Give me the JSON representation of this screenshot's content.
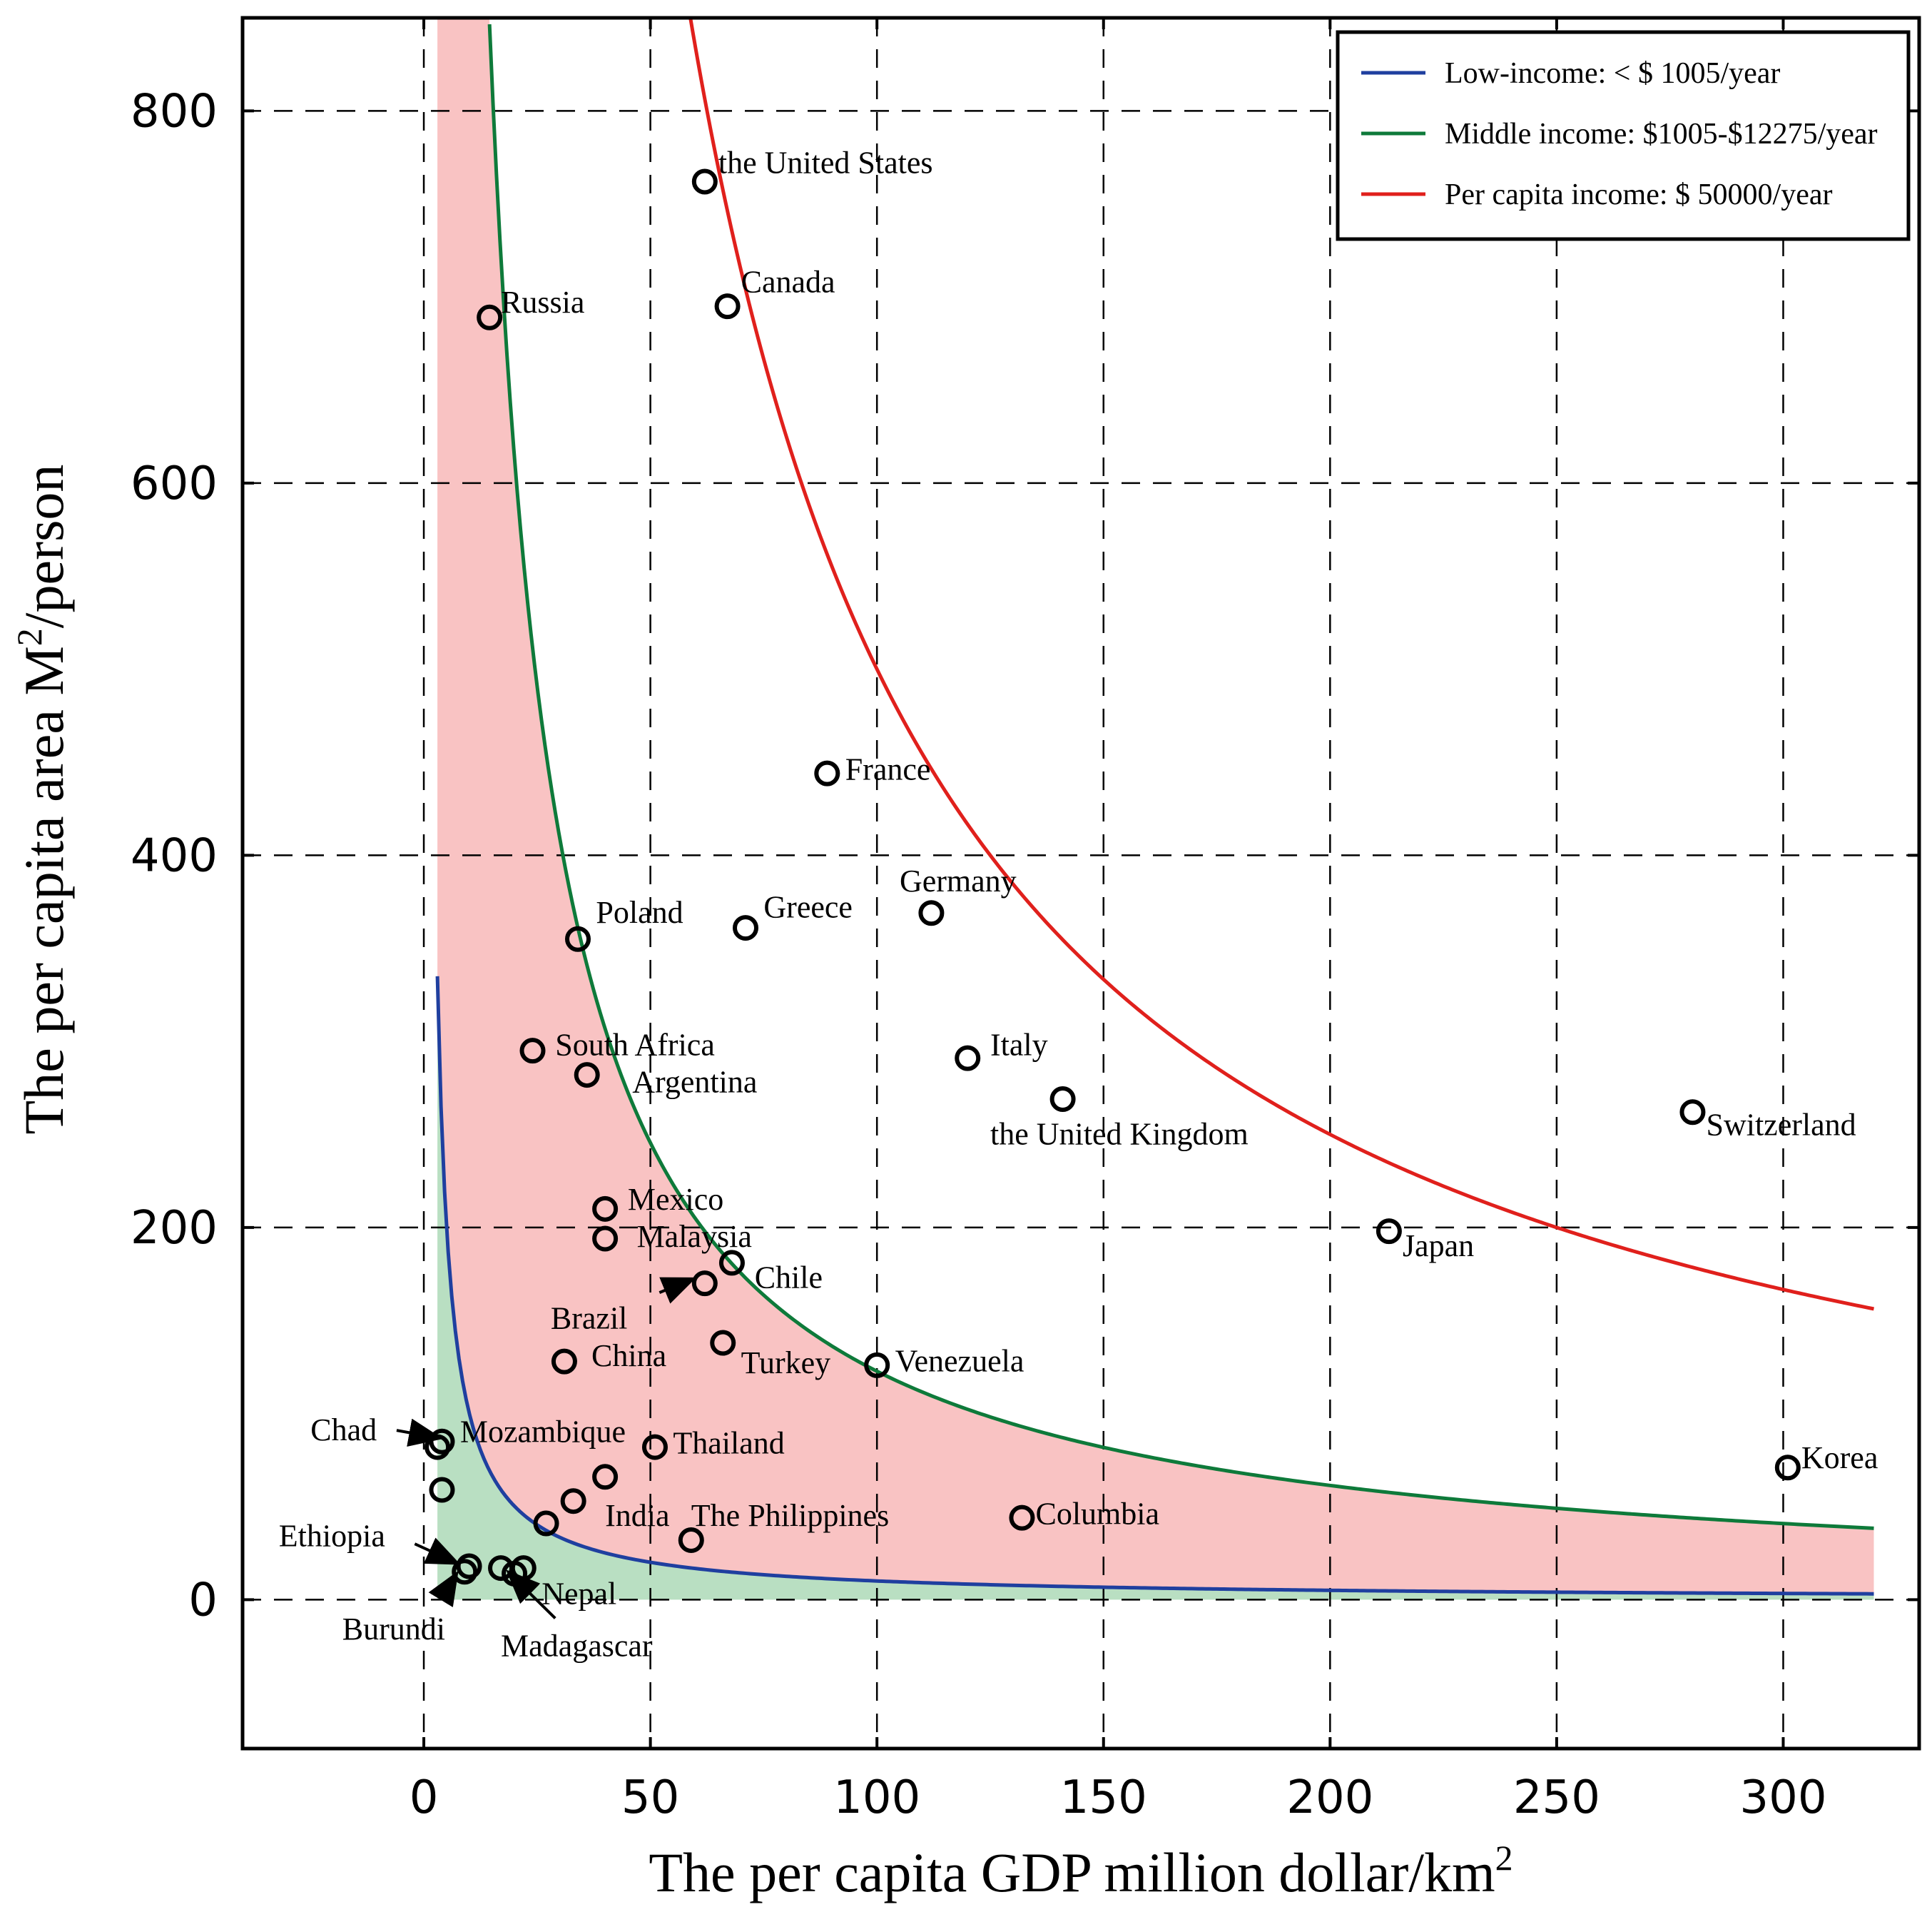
{
  "chart_data": {
    "type": "scatter",
    "xlabel_main": "The per capita GDP million dollar/km",
    "xlabel_sup": "2",
    "ylabel_pre": "The per capita area M",
    "ylabel_sup": "2",
    "ylabel_post": "/person",
    "xlim": [
      -40,
      330
    ],
    "ylim": [
      -80,
      850
    ],
    "xticks": [
      0,
      50,
      100,
      150,
      200,
      250,
      300
    ],
    "yticks": [
      0,
      200,
      400,
      600,
      800
    ],
    "grid": true,
    "legend": {
      "position": "top-right",
      "entries": [
        {
          "label": "Low-income: < $ 1005/year",
          "color": "#1f3f9f"
        },
        {
          "label": "Middle income:  $1005-$12275/year",
          "color": "#0e7a3a"
        },
        {
          "label": "Per capita income: $ 50000/year",
          "color": "#e0201c"
        }
      ]
    },
    "curves": [
      {
        "name": "low-income",
        "k": 1005,
        "x_start": 3,
        "x_end": 320,
        "color": "#1f3f9f"
      },
      {
        "name": "middle-income",
        "k": 12275,
        "x_start": 14.5,
        "x_end": 320,
        "color": "#0e7a3a"
      },
      {
        "name": "high-income",
        "k": 50000,
        "x_start": 58,
        "x_end": 320,
        "color": "#e0201c"
      }
    ],
    "fill_colors": {
      "low": "#b9dfc2",
      "middle": "#f9c3c3"
    },
    "points": [
      {
        "x": 62,
        "y": 762,
        "label": "the United States",
        "lx": 65,
        "ly": 772
      },
      {
        "x": 67,
        "y": 695,
        "label": "Canada",
        "lx": 70,
        "ly": 708
      },
      {
        "x": 14.5,
        "y": 689,
        "label": "Russia",
        "lx": 17,
        "ly": 697
      },
      {
        "x": 89,
        "y": 444,
        "label": "France",
        "lx": 93,
        "ly": 446
      },
      {
        "x": 112,
        "y": 369,
        "label": "Germany",
        "lx": 105,
        "ly": 386
      },
      {
        "x": 71,
        "y": 361,
        "label": "Greece",
        "lx": 75,
        "ly": 372
      },
      {
        "x": 34,
        "y": 355,
        "label": "Poland",
        "lx": 38,
        "ly": 369
      },
      {
        "x": 24,
        "y": 295,
        "label": "South Africa",
        "lx": 29,
        "ly": 298
      },
      {
        "x": 36,
        "y": 282,
        "label": "Argentina",
        "lx": 46,
        "ly": 278
      },
      {
        "x": 120,
        "y": 291,
        "label": "Italy",
        "lx": 125,
        "ly": 298
      },
      {
        "x": 141,
        "y": 269,
        "label": "the United Kingdom",
        "lx": 125,
        "ly": 250
      },
      {
        "x": 280,
        "y": 262,
        "label": "Switzerland",
        "lx": 283,
        "ly": 255
      },
      {
        "x": 40,
        "y": 210,
        "label": "Mexico",
        "lx": 45,
        "ly": 215
      },
      {
        "x": 40,
        "y": 194,
        "label": "Malaysia",
        "lx": 47,
        "ly": 195
      },
      {
        "x": 68,
        "y": 181,
        "label": "Chile",
        "lx": 73,
        "ly": 173
      },
      {
        "x": 213,
        "y": 198,
        "label": "Japan",
        "lx": 216,
        "ly": 190
      },
      {
        "x": 62,
        "y": 170,
        "label": "Brazil",
        "lx": 28,
        "ly": 151
      },
      {
        "x": 31,
        "y": 128,
        "label": "China",
        "lx": 37,
        "ly": 131
      },
      {
        "x": 66,
        "y": 138,
        "label": "Turkey",
        "lx": 70,
        "ly": 127
      },
      {
        "x": 100,
        "y": 126,
        "label": "Venezuela",
        "lx": 104,
        "ly": 128
      },
      {
        "x": 4,
        "y": 85,
        "label": "Mozambique",
        "lx": 8,
        "ly": 90
      },
      {
        "x": 3,
        "y": 82,
        "label": "Chad",
        "lx": -25,
        "ly": 91
      },
      {
        "x": 51,
        "y": 82,
        "label": "Thailand",
        "lx": 55,
        "ly": 84
      },
      {
        "x": 301,
        "y": 71,
        "label": "Korea",
        "lx": 304,
        "ly": 76
      },
      {
        "x": 4,
        "y": 59,
        "label": "",
        "lx": 0,
        "ly": 0
      },
      {
        "x": 40,
        "y": 66,
        "label": "",
        "lx": 0,
        "ly": 0
      },
      {
        "x": 33,
        "y": 53,
        "label": "India",
        "lx": 40,
        "ly": 45
      },
      {
        "x": 27,
        "y": 41,
        "label": "",
        "lx": 0,
        "ly": 0
      },
      {
        "x": 59,
        "y": 32,
        "label": "The Philippines",
        "lx": 59,
        "ly": 45
      },
      {
        "x": 132,
        "y": 44,
        "label": "Columbia",
        "lx": 135,
        "ly": 46
      },
      {
        "x": 10,
        "y": 18,
        "label": "Ethiopia",
        "lx": -32,
        "ly": 34
      },
      {
        "x": 9,
        "y": 15,
        "label": "Burundi",
        "lx": -18,
        "ly": -16
      },
      {
        "x": 17,
        "y": 17,
        "label": "",
        "lx": 0,
        "ly": 0
      },
      {
        "x": 22,
        "y": 17,
        "label": "Nepal",
        "lx": 26,
        "ly": 3
      },
      {
        "x": 20,
        "y": 14,
        "label": "Madagascar",
        "lx": 17,
        "ly": -25
      }
    ],
    "arrows": [
      {
        "from": [
          -6,
          91
        ],
        "to": [
          3,
          87
        ]
      },
      {
        "from": [
          52,
          165
        ],
        "to": [
          59,
          172
        ]
      },
      {
        "from": [
          -2,
          30
        ],
        "to": [
          7,
          20
        ]
      },
      {
        "from": [
          5,
          5
        ],
        "to": [
          7,
          13
        ]
      },
      {
        "from": [
          29,
          -10
        ],
        "to": [
          19,
          14
        ]
      }
    ]
  }
}
